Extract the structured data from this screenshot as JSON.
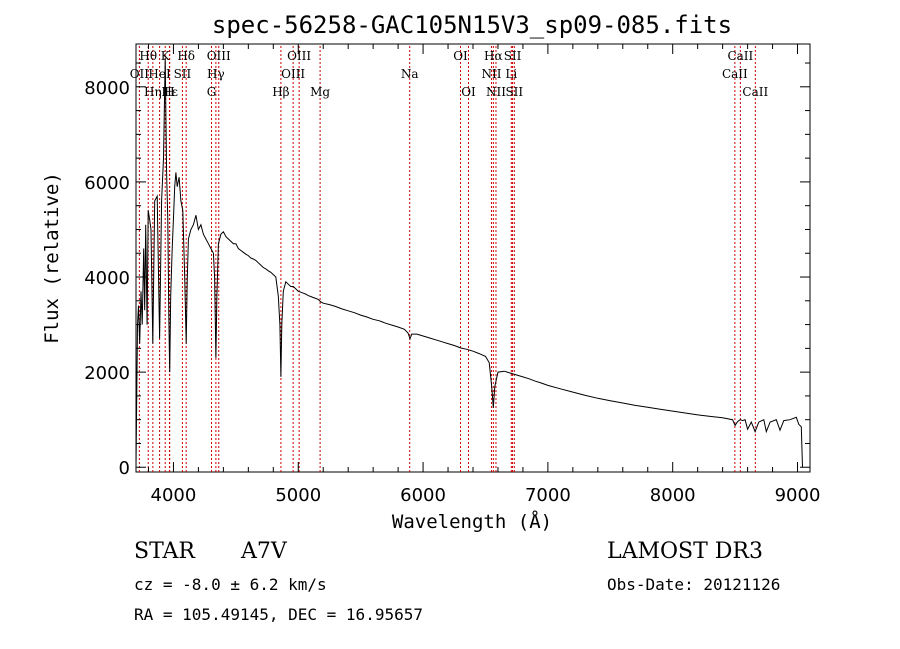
{
  "chart_data": {
    "type": "line",
    "title": "spec-56258-GAC105N15V3_sp09-085.fits",
    "xlabel": "Wavelength (Å)",
    "ylabel": "Flux (relative)",
    "xlim": [
      3700,
      9100
    ],
    "ylim": [
      -100,
      8900
    ],
    "xticks": [
      4000,
      5000,
      6000,
      7000,
      8000,
      9000
    ],
    "yticks": [
      0,
      2000,
      4000,
      6000,
      8000
    ],
    "series": [
      {
        "name": "spectrum",
        "points": [
          [
            3700,
            0
          ],
          [
            3705,
            1200
          ],
          [
            3712,
            3000
          ],
          [
            3720,
            3400
          ],
          [
            3730,
            2600
          ],
          [
            3740,
            3700
          ],
          [
            3750,
            3000
          ],
          [
            3762,
            4600
          ],
          [
            3770,
            3300
          ],
          [
            3778,
            5100
          ],
          [
            3789,
            3000
          ],
          [
            3798,
            5400
          ],
          [
            3810,
            5200
          ],
          [
            3820,
            5000
          ],
          [
            3835,
            2600
          ],
          [
            3850,
            5600
          ],
          [
            3870,
            5700
          ],
          [
            3889,
            2700
          ],
          [
            3905,
            5600
          ],
          [
            3920,
            6500
          ],
          [
            3934,
            8600
          ],
          [
            3945,
            6200
          ],
          [
            3955,
            5200
          ],
          [
            3963,
            3200
          ],
          [
            3970,
            2000
          ],
          [
            3978,
            3600
          ],
          [
            3990,
            4600
          ],
          [
            4000,
            5200
          ],
          [
            4010,
            5900
          ],
          [
            4020,
            6200
          ],
          [
            4030,
            5900
          ],
          [
            4045,
            6100
          ],
          [
            4060,
            5600
          ],
          [
            4075,
            5400
          ],
          [
            4090,
            4000
          ],
          [
            4102,
            2600
          ],
          [
            4110,
            3900
          ],
          [
            4120,
            4800
          ],
          [
            4140,
            5000
          ],
          [
            4160,
            5100
          ],
          [
            4180,
            5300
          ],
          [
            4200,
            5000
          ],
          [
            4220,
            5100
          ],
          [
            4240,
            4900
          ],
          [
            4260,
            4800
          ],
          [
            4280,
            4700
          ],
          [
            4300,
            4600
          ],
          [
            4320,
            4500
          ],
          [
            4330,
            4000
          ],
          [
            4340,
            2300
          ],
          [
            4348,
            3600
          ],
          [
            4360,
            4700
          ],
          [
            4380,
            4900
          ],
          [
            4400,
            4950
          ],
          [
            4420,
            4850
          ],
          [
            4440,
            4800
          ],
          [
            4460,
            4750
          ],
          [
            4480,
            4700
          ],
          [
            4500,
            4700
          ],
          [
            4520,
            4600
          ],
          [
            4540,
            4560
          ],
          [
            4560,
            4520
          ],
          [
            4580,
            4480
          ],
          [
            4600,
            4450
          ],
          [
            4620,
            4400
          ],
          [
            4640,
            4380
          ],
          [
            4660,
            4350
          ],
          [
            4680,
            4300
          ],
          [
            4700,
            4250
          ],
          [
            4720,
            4200
          ],
          [
            4740,
            4170
          ],
          [
            4760,
            4130
          ],
          [
            4780,
            4100
          ],
          [
            4800,
            4050
          ],
          [
            4820,
            4000
          ],
          [
            4840,
            3600
          ],
          [
            4853,
            3000
          ],
          [
            4861,
            1900
          ],
          [
            4868,
            3000
          ],
          [
            4880,
            3700
          ],
          [
            4900,
            3900
          ],
          [
            4920,
            3850
          ],
          [
            4940,
            3800
          ],
          [
            4960,
            3800
          ],
          [
            4980,
            3750
          ],
          [
            5000,
            3700
          ],
          [
            5020,
            3680
          ],
          [
            5040,
            3660
          ],
          [
            5060,
            3640
          ],
          [
            5080,
            3610
          ],
          [
            5100,
            3590
          ],
          [
            5120,
            3570
          ],
          [
            5140,
            3550
          ],
          [
            5160,
            3530
          ],
          [
            5180,
            3480
          ],
          [
            5200,
            3450
          ],
          [
            5250,
            3420
          ],
          [
            5300,
            3380
          ],
          [
            5350,
            3330
          ],
          [
            5400,
            3290
          ],
          [
            5450,
            3250
          ],
          [
            5500,
            3200
          ],
          [
            5550,
            3160
          ],
          [
            5600,
            3110
          ],
          [
            5650,
            3080
          ],
          [
            5700,
            3030
          ],
          [
            5750,
            2990
          ],
          [
            5800,
            2950
          ],
          [
            5850,
            2900
          ],
          [
            5880,
            2820
          ],
          [
            5895,
            2700
          ],
          [
            5910,
            2800
          ],
          [
            5950,
            2800
          ],
          [
            6000,
            2760
          ],
          [
            6050,
            2720
          ],
          [
            6100,
            2680
          ],
          [
            6150,
            2640
          ],
          [
            6200,
            2600
          ],
          [
            6250,
            2560
          ],
          [
            6300,
            2510
          ],
          [
            6350,
            2480
          ],
          [
            6400,
            2440
          ],
          [
            6450,
            2390
          ],
          [
            6500,
            2330
          ],
          [
            6530,
            2200
          ],
          [
            6550,
            1700
          ],
          [
            6563,
            1250
          ],
          [
            6575,
            1700
          ],
          [
            6600,
            2000
          ],
          [
            6650,
            2020
          ],
          [
            6700,
            1980
          ],
          [
            6750,
            1940
          ],
          [
            6800,
            1900
          ],
          [
            6850,
            1860
          ],
          [
            6900,
            1810
          ],
          [
            6950,
            1770
          ],
          [
            7000,
            1720
          ],
          [
            7100,
            1650
          ],
          [
            7200,
            1580
          ],
          [
            7300,
            1510
          ],
          [
            7400,
            1450
          ],
          [
            7500,
            1400
          ],
          [
            7600,
            1350
          ],
          [
            7700,
            1300
          ],
          [
            7800,
            1260
          ],
          [
            7900,
            1220
          ],
          [
            8000,
            1180
          ],
          [
            8100,
            1140
          ],
          [
            8200,
            1100
          ],
          [
            8300,
            1070
          ],
          [
            8400,
            1040
          ],
          [
            8480,
            1000
          ],
          [
            8500,
            880
          ],
          [
            8520,
            960
          ],
          [
            8540,
            1000
          ],
          [
            8560,
            980
          ],
          [
            8580,
            1000
          ],
          [
            8600,
            800
          ],
          [
            8630,
            950
          ],
          [
            8660,
            750
          ],
          [
            8690,
            950
          ],
          [
            8730,
            1000
          ],
          [
            8750,
            750
          ],
          [
            8780,
            950
          ],
          [
            8830,
            1000
          ],
          [
            8860,
            780
          ],
          [
            8890,
            980
          ],
          [
            8940,
            1000
          ],
          [
            8990,
            1050
          ],
          [
            9010,
            900
          ],
          [
            9030,
            850
          ],
          [
            9040,
            0
          ]
        ]
      }
    ],
    "spectral_lines": [
      {
        "label": "Hθ",
        "wavelength": 3798,
        "row": 0
      },
      {
        "label": "OII",
        "wavelength": 3727,
        "row": 1
      },
      {
        "label": "Hη",
        "wavelength": 3835,
        "row": 2
      },
      {
        "label": "K",
        "wavelength": 3934,
        "row": 0
      },
      {
        "label": "HeI",
        "wavelength": 3889,
        "row": 1
      },
      {
        "label": "Hε",
        "wavelength": 3970,
        "row": 2
      },
      {
        "label": "H",
        "wavelength": 3968,
        "row": 2
      },
      {
        "label": "Hδ",
        "wavelength": 4102,
        "row": 0
      },
      {
        "label": "SII",
        "wavelength": 4072,
        "row": 1
      },
      {
        "label": "OIII",
        "wavelength": 4363,
        "row": 0
      },
      {
        "label": "Hγ",
        "wavelength": 4340,
        "row": 1
      },
      {
        "label": "G",
        "wavelength": 4305,
        "row": 2
      },
      {
        "label": "OIII",
        "wavelength": 5007,
        "row": 0
      },
      {
        "label": "OIII",
        "wavelength": 4959,
        "row": 1
      },
      {
        "label": "Hβ",
        "wavelength": 4861,
        "row": 2
      },
      {
        "label": "Mg",
        "wavelength": 5175,
        "row": 2
      },
      {
        "label": "Na",
        "wavelength": 5893,
        "row": 1
      },
      {
        "label": "OI",
        "wavelength": 6300,
        "row": 0
      },
      {
        "label": "OI",
        "wavelength": 6364,
        "row": 2
      },
      {
        "label": "Hα",
        "wavelength": 6563,
        "row": 0
      },
      {
        "label": "NII",
        "wavelength": 6548,
        "row": 1
      },
      {
        "label": "NII",
        "wavelength": 6584,
        "row": 2
      },
      {
        "label": "SII",
        "wavelength": 6717,
        "row": 0
      },
      {
        "label": "Li",
        "wavelength": 6707,
        "row": 1
      },
      {
        "label": "SII",
        "wavelength": 6731,
        "row": 2
      },
      {
        "label": "CaII",
        "wavelength": 8542,
        "row": 0
      },
      {
        "label": "CaII",
        "wavelength": 8498,
        "row": 1
      },
      {
        "label": "CaII",
        "wavelength": 8662,
        "row": 2
      }
    ]
  },
  "info": {
    "object_class": "STAR",
    "subclass": "A7V",
    "survey": "LAMOST DR3",
    "cz": "cz = -8.0 ± 6.2 km/s",
    "obs_date": "Obs-Date: 20121126",
    "coords": "RA = 105.49145, DEC =  16.95657"
  },
  "colors": {
    "line": "#000000",
    "marker": "#cc0000"
  }
}
